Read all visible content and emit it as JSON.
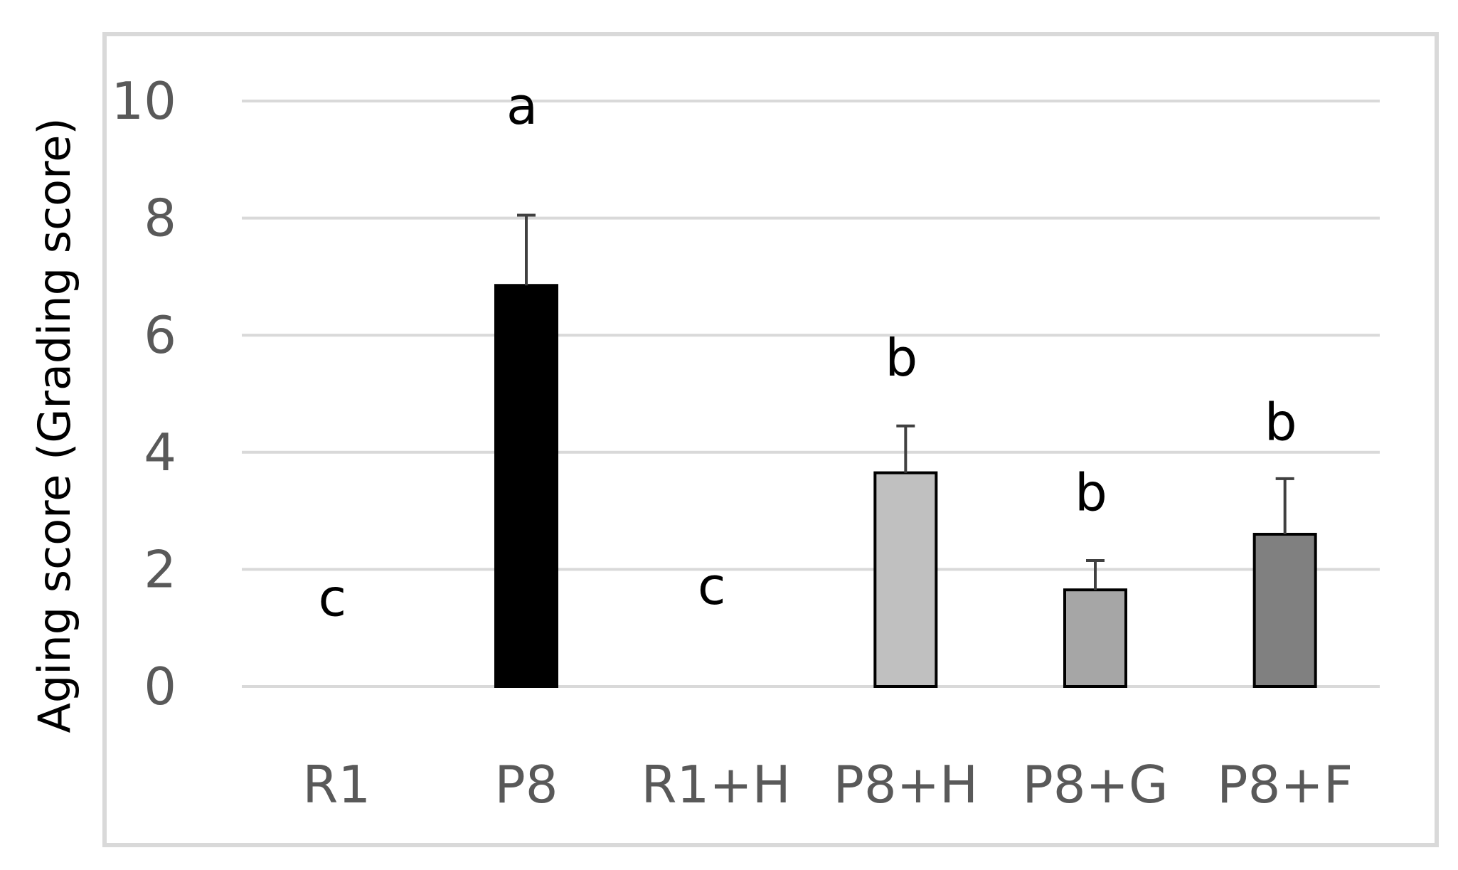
{
  "chart_data": {
    "type": "bar",
    "title": "",
    "xlabel": "",
    "ylabel": "Aging score (Grading score)",
    "ylim": [
      0,
      10
    ],
    "yticks": [
      0,
      2,
      4,
      6,
      8,
      10
    ],
    "grid": true,
    "legend": "none",
    "categories": [
      "R1",
      "P8",
      "R1+H",
      "P8+H",
      "P8+G",
      "P8+F"
    ],
    "values": [
      0,
      6.85,
      0,
      3.65,
      1.65,
      2.6
    ],
    "error": [
      0,
      1.2,
      0,
      0.8,
      0.5,
      0.95
    ],
    "significance": [
      "c",
      "a",
      "c",
      "b",
      "b",
      "b"
    ],
    "significance_y": [
      1.5,
      9.9,
      1.7,
      5.6,
      3.3,
      4.5
    ],
    "colors": [
      "#ffffff",
      "#000000",
      "#ffffff",
      "#c0c0c0",
      "#a6a6a6",
      "#808080"
    ]
  },
  "style": {
    "grid_color": "#d9d9d9",
    "frame_color": "#d9d9d9",
    "bar_stroke": "#000000",
    "error_color": "#404040"
  }
}
